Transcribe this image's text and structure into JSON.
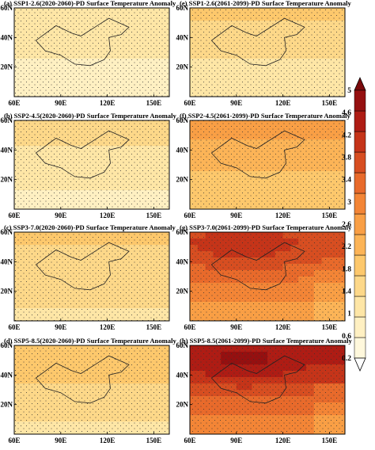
{
  "chart_data": {
    "type": "heatmap",
    "panels": [
      {
        "label": "(a)",
        "scenario": "SSP1-2.6",
        "period": "2020-2060",
        "title": "(a) SSP1-2.6(2020-2060)-PD Surface Temperature Anomaly",
        "north_mean": 1.2,
        "south_mean": 0.8,
        "hot_core": 0
      },
      {
        "label": "(e)",
        "scenario": "SSP1-2.6",
        "period": "2061-2099",
        "title": "(e) SSP1-2.6(2061-2099)-PD Surface Temperature Anomaly",
        "north_mean": 1.7,
        "south_mean": 1.0,
        "hot_core": 0
      },
      {
        "label": "(b)",
        "scenario": "SSP2-4.5",
        "period": "2020-2060",
        "title": "(b) SSP2-4.5(2020-2060)-PD Surface Temperature Anomaly",
        "north_mean": 1.4,
        "south_mean": 0.9,
        "hot_core": 0
      },
      {
        "label": "(f)",
        "scenario": "SSP2-4.5",
        "period": "2061-2099",
        "title": "(f) SSP2-4.5(2061-2099)-PD Surface Temperature Anomaly",
        "north_mean": 2.5,
        "south_mean": 1.7,
        "hot_core": 0
      },
      {
        "label": "(c)",
        "scenario": "SSP3-7.0",
        "period": "2020-2060",
        "title": "(c) SSP3-7.0(2020-2060)-PD Surface Temperature Anomaly",
        "north_mean": 1.7,
        "south_mean": 1.3,
        "hot_core": 0
      },
      {
        "label": "(g)",
        "scenario": "SSP3-7.0",
        "period": "2061-2099",
        "title": "(g) SSP3-7.0(2061-2099)-PD Surface Temperature Anomaly",
        "north_mean": 3.8,
        "south_mean": 2.6,
        "hot_core": 1
      },
      {
        "label": "(d)",
        "scenario": "SSP5-8.5",
        "period": "2020-2060",
        "title": "(d) SSP5-8.5(2020-2060)-PD Surface Temperature Anomaly",
        "north_mean": 1.9,
        "south_mean": 1.3,
        "hot_core": 0
      },
      {
        "label": "(h)",
        "scenario": "SSP5-8.5",
        "period": "2061-2099",
        "title": "(h) SSP5-8.5(2061-2099)-PD Surface Temperature Anomaly",
        "north_mean": 4.4,
        "south_mean": 3.0,
        "hot_core": 1
      }
    ],
    "x_ticks": [
      "60E",
      "90E",
      "120E",
      "150E"
    ],
    "y_ticks": [
      "60N",
      "40N",
      "20N"
    ],
    "x_range": [
      60,
      160
    ],
    "y_range": [
      0,
      60
    ],
    "stippling": true,
    "colorbar": {
      "ticks": [
        "0.2",
        "0.6",
        "1",
        "1.4",
        "1.8",
        "2.2",
        "2.6",
        "3",
        "3.4",
        "3.8",
        "4.2",
        "4.6",
        "5"
      ],
      "range": [
        0.2,
        5
      ],
      "colors": [
        "#ffffff",
        "#fff8dc",
        "#fff0c2",
        "#fee6a6",
        "#fdd889",
        "#fdc86c",
        "#fcb457",
        "#f99f45",
        "#f38536",
        "#e86a2b",
        "#d74e21",
        "#c53419",
        "#ae1c14",
        "#951010",
        "#7b0a0c"
      ],
      "extend": "both",
      "position": "right"
    }
  }
}
